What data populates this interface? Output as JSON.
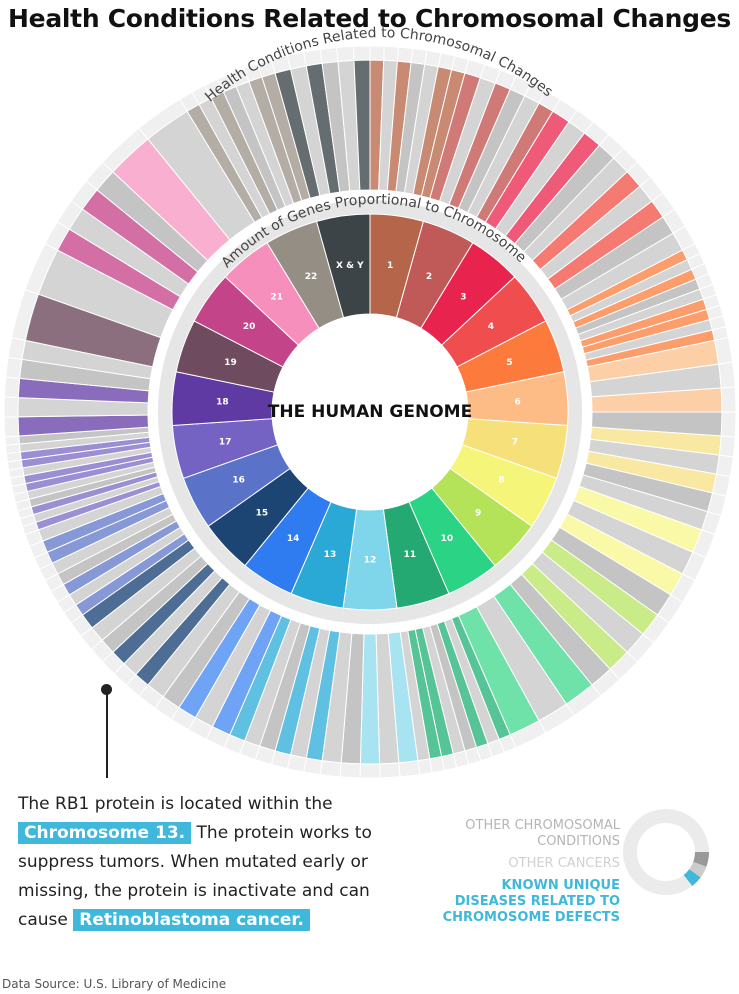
{
  "title": "Health Conditions Related to Chromosomal Changes",
  "center_label": "THE HUMAN GENOME",
  "outer_ring_label": "Health Conditions Related to Chromosomal Changes",
  "inner_ring_label": "Amount of Genes Proportional to Chromosome",
  "chart_data": {
    "type": "pie",
    "title": "Health Conditions Related to Chromosomal Changes",
    "center_label": "THE HUMAN GENOME",
    "segments": [
      {
        "label": "1",
        "color": "#b5654a",
        "light": "#c98a73",
        "conditions": 7
      },
      {
        "label": "2",
        "color": "#c05a59",
        "light": "#d07a78",
        "conditions": 6
      },
      {
        "label": "3",
        "color": "#e8244e",
        "light": "#ee5a78",
        "conditions": 5
      },
      {
        "label": "4",
        "color": "#f04e4e",
        "light": "#f47a72",
        "conditions": 5
      },
      {
        "label": "5",
        "color": "#fb7a3c",
        "light": "#fc9d6b",
        "conditions": 9
      },
      {
        "label": "6",
        "color": "#fdbb86",
        "light": "#fdcfa6",
        "conditions": 4
      },
      {
        "label": "7",
        "color": "#f6e07a",
        "light": "#f8e8a2",
        "conditions": 5
      },
      {
        "label": "8",
        "color": "#f5f57a",
        "light": "#f9f9a8",
        "conditions": 4
      },
      {
        "label": "9",
        "color": "#b4e35a",
        "light": "#c9ec88",
        "conditions": 4
      },
      {
        "label": "10",
        "color": "#2bd384",
        "light": "#6fe2aa",
        "conditions": 3
      },
      {
        "label": "11",
        "color": "#25a972",
        "light": "#56c497",
        "conditions": 8
      },
      {
        "label": "12",
        "color": "#7fd6ea",
        "light": "#a7e3f1",
        "conditions": 5
      },
      {
        "label": "13",
        "color": "#2aa9d6",
        "light": "#5fc0e2",
        "conditions": 6
      },
      {
        "label": "14",
        "color": "#2f7cf0",
        "light": "#6ea3f5",
        "conditions": 5
      },
      {
        "label": "15",
        "color": "#1c4574",
        "light": "#4e6d94",
        "conditions": 6
      },
      {
        "label": "16",
        "color": "#5a73c8",
        "light": "#8798d6",
        "conditions": 8
      },
      {
        "label": "17",
        "color": "#7563c4",
        "light": "#9b8ed3",
        "conditions": 12
      },
      {
        "label": "18",
        "color": "#5e3aa2",
        "light": "#8a6cbd",
        "conditions": 5
      },
      {
        "label": "19",
        "color": "#6e4b5e",
        "light": "#8c6f7e",
        "conditions": 2
      },
      {
        "label": "20",
        "color": "#c4448a",
        "light": "#d46fa6",
        "conditions": 4
      },
      {
        "label": "21",
        "color": "#f78fbd",
        "light": "#f9b0d0",
        "conditions": 2
      },
      {
        "label": "22",
        "color": "#958e84",
        "light": "#b3ada5",
        "conditions": 7
      },
      {
        "label": "X & Y",
        "color": "#3d4448",
        "light": "#666d71",
        "conditions": 6
      }
    ],
    "legend": [
      {
        "label": "OTHER CHROMOSOMAL CONDITIONS",
        "color": "#b5b5b5"
      },
      {
        "label": "OTHER CANCERS",
        "color": "#d0d0d0"
      },
      {
        "label": "KNOWN UNIQUE DISEASES RELATED TO CHROMOSOME DEFECTS",
        "color": "#3fb8dc"
      }
    ]
  },
  "callout": {
    "text_1": "The RB1 protein is located within the",
    "highlight_1": "Chromosome 13.",
    "text_2": "The protein works to suppress tumors. When mutated early or missing, the protein is inactivate and can cause",
    "highlight_2": "Retinoblastoma cancer."
  },
  "legend": {
    "other": "OTHER CHROMOSOMAL\nCONDITIONS",
    "cancers": "OTHER CANCERS",
    "unique": "KNOWN UNIQUE\nDISEASES RELATED TO\nCHROMOSOME DEFECTS"
  },
  "source": "Data Source: U.S. Library of Medicine"
}
